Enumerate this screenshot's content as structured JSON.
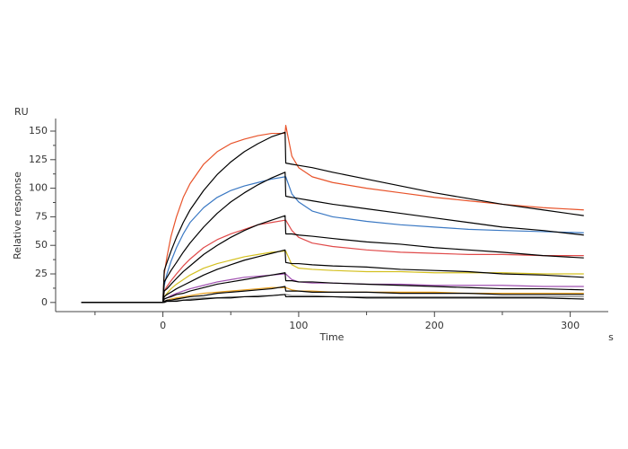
{
  "chart_data": {
    "type": "line",
    "xlabel": "Time",
    "xunit": "s",
    "ylabel": "Relative response",
    "yunit": "RU",
    "xlim": [
      -79,
      328
    ],
    "ylim": [
      -8,
      161
    ],
    "xticks": [
      0,
      100,
      200,
      300
    ],
    "xminorticks": [
      -50,
      50,
      150,
      250
    ],
    "yticks": [
      0,
      25,
      50,
      75,
      100,
      125,
      150
    ],
    "yminorticks": [
      12.5,
      37.5,
      62.5,
      87.5,
      112.5,
      137.5
    ],
    "x": [
      -60,
      -20,
      0,
      1,
      3,
      6,
      10,
      15,
      20,
      30,
      40,
      50,
      60,
      70,
      80,
      90,
      90.5,
      95,
      100,
      110,
      125,
      150,
      175,
      200,
      225,
      250,
      280,
      310
    ],
    "series": [
      {
        "color": "#e8532a",
        "values": [
          0,
          0,
          0,
          25,
          40,
          58,
          75,
          92,
          104,
          121,
          132,
          139,
          143,
          146,
          148,
          148,
          155,
          128,
          118,
          110,
          105,
          100,
          96,
          92,
          89,
          86,
          83,
          81
        ]
      },
      {
        "color": "#3a78c3",
        "values": [
          0,
          0,
          0,
          15,
          25,
          36,
          48,
          60,
          70,
          83,
          92,
          98,
          102,
          105,
          108,
          110,
          110,
          95,
          88,
          80,
          75,
          71,
          68,
          66,
          64,
          63,
          62,
          61
        ]
      },
      {
        "color": "#e04a4a",
        "values": [
          0,
          0,
          0,
          10,
          14,
          19,
          25,
          32,
          38,
          48,
          55,
          60,
          64,
          68,
          70,
          72,
          72,
          63,
          57,
          52,
          49,
          46,
          44,
          43,
          42,
          42,
          41,
          41
        ]
      },
      {
        "color": "#d4c020",
        "values": [
          0,
          0,
          0,
          5,
          8,
          12,
          16,
          20,
          24,
          30,
          34,
          37,
          40,
          42,
          44,
          45,
          45,
          33,
          30,
          29,
          28,
          27,
          27,
          26,
          26,
          26,
          25,
          25
        ]
      },
      {
        "color": "#a050b0",
        "values": [
          0,
          0,
          0,
          3,
          4,
          6,
          8,
          10,
          12,
          15,
          18,
          20,
          22,
          23,
          24,
          25,
          25,
          20,
          18,
          17,
          17,
          16,
          16,
          15,
          15,
          15,
          14,
          14
        ]
      },
      {
        "color": "#e8a020",
        "values": [
          0,
          0,
          0,
          1,
          2,
          3,
          4,
          5,
          6,
          8,
          9,
          10,
          11,
          12,
          13,
          13,
          13,
          11,
          10,
          10,
          9,
          9,
          9,
          9,
          8,
          8,
          8,
          8
        ]
      },
      {
        "color": "#888888",
        "values": [
          0,
          0,
          0,
          1,
          1,
          1,
          2,
          2,
          3,
          4,
          4,
          5,
          5,
          6,
          6,
          7,
          7,
          6,
          6,
          6,
          5,
          5,
          5,
          5,
          5,
          5,
          5,
          5
        ]
      },
      {
        "color": "#000000",
        "values": [
          0,
          0,
          0,
          28,
          35,
          45,
          57,
          70,
          81,
          98,
          112,
          123,
          132,
          139,
          145,
          149,
          122,
          121,
          120,
          118,
          114,
          108,
          102,
          96,
          91,
          86,
          81,
          76
        ]
      },
      {
        "color": "#000000",
        "values": [
          0,
          0,
          0,
          18,
          22,
          28,
          35,
          44,
          52,
          66,
          78,
          88,
          96,
          103,
          109,
          114,
          93,
          92,
          91,
          89,
          86,
          82,
          78,
          74,
          70,
          66,
          63,
          59
        ]
      },
      {
        "color": "#000000",
        "values": [
          0,
          0,
          0,
          10,
          12,
          16,
          21,
          27,
          32,
          42,
          50,
          57,
          63,
          68,
          72,
          76,
          60,
          60,
          59,
          58,
          56,
          53,
          51,
          48,
          46,
          44,
          41,
          39
        ]
      },
      {
        "color": "#000000",
        "values": [
          0,
          0,
          0,
          5,
          7,
          9,
          12,
          15,
          18,
          24,
          29,
          33,
          37,
          40,
          43,
          46,
          35,
          34,
          34,
          33,
          32,
          31,
          29,
          28,
          27,
          25,
          24,
          22
        ]
      },
      {
        "color": "#000000",
        "values": [
          0,
          0,
          0,
          3,
          4,
          5,
          7,
          8,
          10,
          13,
          16,
          18,
          20,
          22,
          24,
          26,
          19,
          19,
          18,
          18,
          17,
          16,
          15,
          14,
          13,
          12,
          12,
          11
        ]
      },
      {
        "color": "#000000",
        "values": [
          0,
          0,
          0,
          1,
          2,
          2,
          3,
          4,
          5,
          6,
          8,
          9,
          10,
          11,
          12,
          14,
          10,
          10,
          10,
          9,
          9,
          9,
          8,
          8,
          8,
          7,
          7,
          7
        ]
      },
      {
        "color": "#000000",
        "values": [
          0,
          0,
          0,
          0,
          1,
          1,
          1,
          2,
          2,
          3,
          4,
          4,
          5,
          5,
          6,
          7,
          5,
          5,
          5,
          5,
          5,
          4,
          4,
          4,
          4,
          4,
          4,
          3
        ]
      }
    ]
  }
}
